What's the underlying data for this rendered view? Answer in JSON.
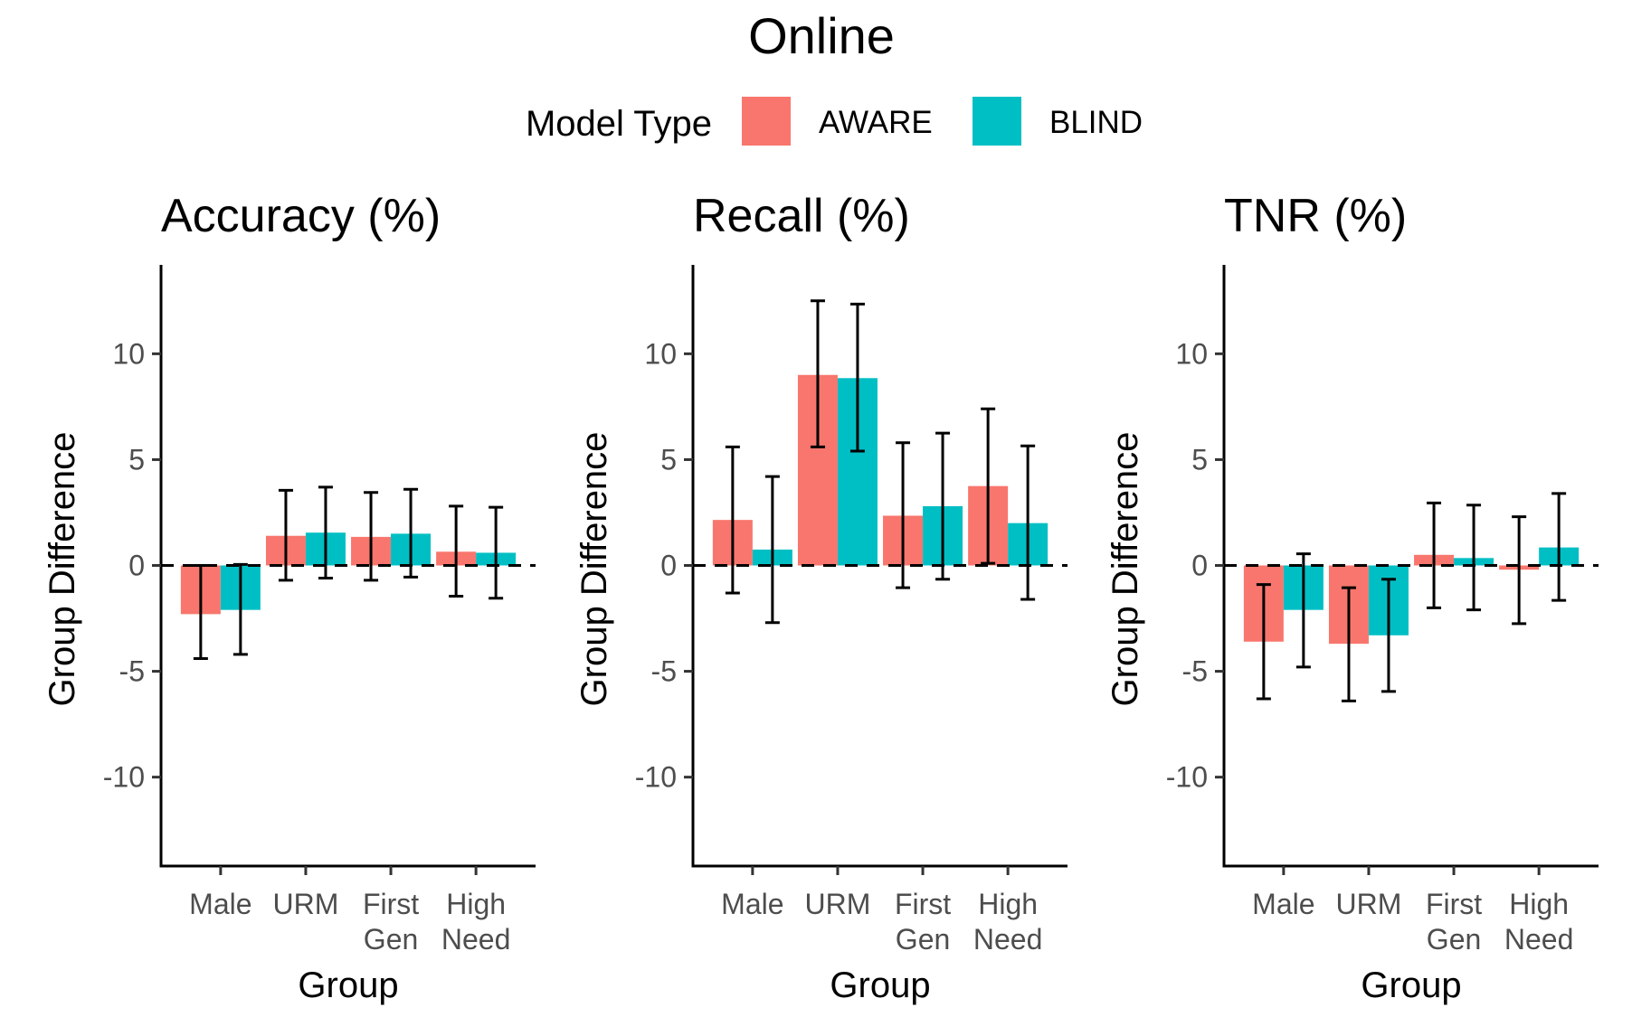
{
  "title": "Online",
  "legend": {
    "title": "Model Type",
    "items": [
      {
        "label": "AWARE",
        "color": "#F8766D"
      },
      {
        "label": "BLIND",
        "color": "#00BFC4"
      }
    ]
  },
  "chart_data": [
    {
      "type": "bar",
      "title": "Accuracy (%)",
      "xlabel": "Group",
      "ylabel": "Group Difference",
      "ylim": [
        -14.2,
        14.2
      ],
      "yticks": [
        10,
        5,
        0,
        -5,
        -10
      ],
      "yticklabels": [
        "10",
        "5",
        "0",
        "-5",
        "-10"
      ],
      "reference_line": 0,
      "categories": [
        [
          "Male"
        ],
        [
          "URM"
        ],
        [
          "First",
          "Gen"
        ],
        [
          "High",
          "Need"
        ]
      ],
      "series": [
        {
          "name": "AWARE",
          "values": [
            -2.3,
            1.4,
            1.35,
            0.65
          ],
          "lower": [
            -4.4,
            -0.7,
            -0.7,
            -1.45
          ],
          "upper": [
            0.0,
            3.55,
            3.45,
            2.8
          ]
        },
        {
          "name": "BLIND",
          "values": [
            -2.1,
            1.55,
            1.5,
            0.6
          ],
          "lower": [
            -4.2,
            -0.6,
            -0.55,
            -1.55
          ],
          "upper": [
            0.05,
            3.7,
            3.6,
            2.75
          ]
        }
      ]
    },
    {
      "type": "bar",
      "title": "Recall (%)",
      "xlabel": "Group",
      "ylabel": "Group Difference",
      "ylim": [
        -14.2,
        14.2
      ],
      "yticks": [
        10,
        5,
        0,
        -5,
        -10
      ],
      "yticklabels": [
        "10",
        "5",
        "0",
        "-5",
        "-10"
      ],
      "reference_line": 0,
      "categories": [
        [
          "Male"
        ],
        [
          "URM"
        ],
        [
          "First",
          "Gen"
        ],
        [
          "High",
          "Need"
        ]
      ],
      "series": [
        {
          "name": "AWARE",
          "values": [
            2.15,
            9.0,
            2.35,
            3.75
          ],
          "lower": [
            -1.3,
            5.6,
            -1.05,
            0.1
          ],
          "upper": [
            5.6,
            12.5,
            5.8,
            7.4
          ]
        },
        {
          "name": "BLIND",
          "values": [
            0.75,
            8.85,
            2.8,
            2.0
          ],
          "lower": [
            -2.7,
            5.4,
            -0.65,
            -1.6
          ],
          "upper": [
            4.2,
            12.35,
            6.25,
            5.65
          ]
        }
      ]
    },
    {
      "type": "bar",
      "title": "TNR (%)",
      "xlabel": "Group",
      "ylabel": "Group Difference",
      "ylim": [
        -14.2,
        14.2
      ],
      "yticks": [
        10,
        5,
        0,
        -5,
        -10
      ],
      "yticklabels": [
        "10",
        "5",
        "0",
        "-5",
        "-10"
      ],
      "reference_line": 0,
      "categories": [
        [
          "Male"
        ],
        [
          "URM"
        ],
        [
          "First",
          "Gen"
        ],
        [
          "High",
          "Need"
        ]
      ],
      "series": [
        {
          "name": "AWARE",
          "values": [
            -3.6,
            -3.7,
            0.5,
            -0.2
          ],
          "lower": [
            -6.3,
            -6.4,
            -2.0,
            -2.75
          ],
          "upper": [
            -0.9,
            -1.05,
            2.95,
            2.3
          ]
        },
        {
          "name": "BLIND",
          "values": [
            -2.1,
            -3.3,
            0.35,
            0.85
          ],
          "lower": [
            -4.8,
            -5.95,
            -2.1,
            -1.65
          ],
          "upper": [
            0.55,
            -0.65,
            2.85,
            3.4
          ]
        }
      ]
    }
  ]
}
